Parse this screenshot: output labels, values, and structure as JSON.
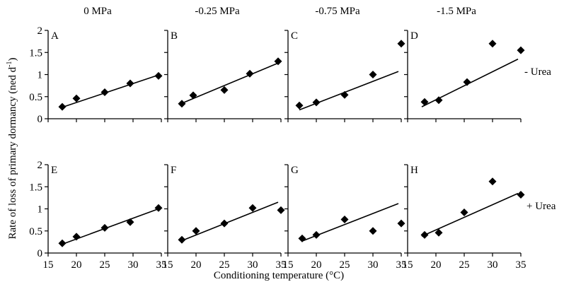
{
  "figure": {
    "ylabel_text": "Rate of loss of  primary dormancy (ned d",
    "ylabel_sup": "-1",
    "ylabel_close": ")",
    "xlabel": "Conditioning temperature (°C)",
    "column_titles": [
      "0 MPa",
      "-0.25 MPa",
      "-0.75 MPa",
      "-1.5 MPa"
    ],
    "row_labels": [
      "- Urea",
      "+ Urea"
    ],
    "y_ticks": [
      "0",
      "0.5",
      "1",
      "1.5",
      "2"
    ],
    "x_ticks": [
      "15",
      "20",
      "25",
      "30",
      "35"
    ]
  },
  "colors": {
    "marker": "#000000",
    "axis": "#000000",
    "background": "#ffffff"
  },
  "chart_data": [
    {
      "type": "scatter",
      "panel": "A",
      "treatment": "- Urea",
      "water_potential": "0 MPa",
      "x": [
        17.5,
        20,
        25,
        29.5,
        34.5
      ],
      "y": [
        0.27,
        0.46,
        0.6,
        0.8,
        0.97
      ],
      "trend_line": {
        "x": [
          17.5,
          34.5
        ],
        "y": [
          0.26,
          0.99
        ]
      },
      "xlim": [
        15,
        35
      ],
      "ylim": [
        0,
        2
      ]
    },
    {
      "type": "scatter",
      "panel": "B",
      "treatment": "- Urea",
      "water_potential": "-0.25 MPa",
      "x": [
        17.5,
        19.5,
        25,
        29.5,
        34.5
      ],
      "y": [
        0.34,
        0.53,
        0.65,
        1.02,
        1.3
      ],
      "trend_line": {
        "x": [
          17.5,
          34.5
        ],
        "y": [
          0.35,
          1.26
        ]
      },
      "xlim": [
        15,
        35
      ],
      "ylim": [
        0,
        2
      ]
    },
    {
      "type": "scatter",
      "panel": "C",
      "treatment": "- Urea",
      "water_potential": "-0.75 MPa",
      "x": [
        17,
        20,
        25,
        30,
        35
      ],
      "y": [
        0.3,
        0.37,
        0.54,
        1.0,
        1.7
      ],
      "trend_line": {
        "x": [
          17,
          34.5
        ],
        "y": [
          0.2,
          1.07
        ]
      },
      "xlim": [
        15,
        35
      ],
      "ylim": [
        0,
        2
      ]
    },
    {
      "type": "scatter",
      "panel": "D",
      "treatment": "- Urea",
      "water_potential": "-1.5 MPa",
      "x": [
        18,
        20.5,
        25.5,
        30,
        35
      ],
      "y": [
        0.38,
        0.42,
        0.83,
        1.7,
        1.55
      ],
      "trend_line": {
        "x": [
          17.5,
          34.5
        ],
        "y": [
          0.27,
          1.35
        ]
      },
      "xlim": [
        15,
        35
      ],
      "ylim": [
        0,
        2
      ]
    },
    {
      "type": "scatter",
      "panel": "E",
      "treatment": "+ Urea",
      "water_potential": "0 MPa",
      "x": [
        17.5,
        20,
        25,
        29.5,
        34.5
      ],
      "y": [
        0.22,
        0.37,
        0.57,
        0.7,
        1.02
      ],
      "trend_line": {
        "x": [
          17.5,
          34.5
        ],
        "y": [
          0.2,
          1.0
        ]
      },
      "xlim": [
        15,
        35
      ],
      "ylim": [
        0,
        2
      ]
    },
    {
      "type": "scatter",
      "panel": "F",
      "treatment": "+ Urea",
      "water_potential": "-0.25 MPa",
      "x": [
        17.5,
        20,
        25,
        30,
        35
      ],
      "y": [
        0.3,
        0.5,
        0.67,
        1.02,
        0.97
      ],
      "trend_line": {
        "x": [
          17.5,
          34.5
        ],
        "y": [
          0.28,
          1.15
        ]
      },
      "xlim": [
        15,
        35
      ],
      "ylim": [
        0,
        2
      ]
    },
    {
      "type": "scatter",
      "panel": "G",
      "treatment": "+ Urea",
      "water_potential": "-0.75 MPa",
      "x": [
        17.5,
        20,
        25,
        30,
        35
      ],
      "y": [
        0.33,
        0.41,
        0.76,
        0.5,
        0.67
      ],
      "trend_line": {
        "x": [
          17.5,
          34.5
        ],
        "y": [
          0.27,
          1.12
        ]
      },
      "xlim": [
        15,
        35
      ],
      "ylim": [
        0,
        2
      ]
    },
    {
      "type": "scatter",
      "panel": "H",
      "treatment": "+ Urea",
      "water_potential": "-1.5 MPa",
      "x": [
        18,
        20.5,
        25,
        30,
        35
      ],
      "y": [
        0.41,
        0.46,
        0.92,
        1.62,
        1.32
      ],
      "trend_line": {
        "x": [
          17.5,
          34.5
        ],
        "y": [
          0.38,
          1.35
        ]
      },
      "xlim": [
        15,
        35
      ],
      "ylim": [
        0,
        2
      ]
    }
  ]
}
